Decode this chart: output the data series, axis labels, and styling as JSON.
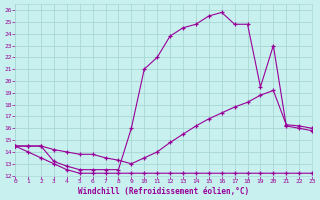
{
  "xlabel": "Windchill (Refroidissement éolien,°C)",
  "bg_color": "#c8f0ee",
  "grid_color": "#a8d8d4",
  "line_color": "#990099",
  "xlim": [
    0,
    23
  ],
  "ylim": [
    12,
    26.5
  ],
  "xticks": [
    0,
    1,
    2,
    3,
    4,
    5,
    6,
    7,
    8,
    9,
    10,
    11,
    12,
    13,
    14,
    15,
    16,
    17,
    18,
    19,
    20,
    21,
    22,
    23
  ],
  "yticks": [
    12,
    13,
    14,
    15,
    16,
    17,
    18,
    19,
    20,
    21,
    22,
    23,
    24,
    25,
    26
  ],
  "curve1_x": [
    0,
    1,
    2,
    3,
    4,
    5,
    6,
    7,
    8,
    9,
    10,
    11,
    12,
    13,
    14,
    15,
    16,
    17,
    18,
    19,
    20,
    21,
    22,
    23
  ],
  "curve1_y": [
    14.5,
    14.0,
    13.5,
    13.0,
    12.5,
    12.2,
    12.2,
    12.2,
    12.2,
    12.2,
    12.2,
    12.2,
    12.2,
    12.2,
    12.2,
    12.2,
    12.2,
    12.2,
    12.2,
    12.2,
    12.2,
    12.2,
    12.2,
    12.2
  ],
  "curve2_x": [
    0,
    1,
    2,
    3,
    4,
    5,
    6,
    7,
    8,
    9,
    10,
    11,
    12,
    13,
    14,
    15,
    16,
    17,
    18,
    19,
    20,
    21,
    22,
    23
  ],
  "curve2_y": [
    14.5,
    14.5,
    14.5,
    14.2,
    14.0,
    13.8,
    13.8,
    13.5,
    13.3,
    13.0,
    13.5,
    14.0,
    14.8,
    15.5,
    16.2,
    16.8,
    17.3,
    17.8,
    18.2,
    18.8,
    19.2,
    16.3,
    16.2,
    16.0
  ],
  "curve3_x": [
    0,
    1,
    2,
    3,
    4,
    5,
    6,
    7,
    8,
    9,
    10,
    11,
    12,
    13,
    14,
    15,
    16,
    17,
    18,
    19,
    20,
    21,
    22,
    23
  ],
  "curve3_y": [
    14.5,
    14.5,
    14.5,
    13.2,
    12.8,
    12.5,
    12.5,
    12.5,
    12.5,
    16.0,
    21.0,
    22.0,
    23.8,
    24.5,
    24.8,
    25.5,
    25.8,
    24.8,
    24.8,
    19.5,
    23.0,
    16.2,
    16.0,
    15.8
  ]
}
